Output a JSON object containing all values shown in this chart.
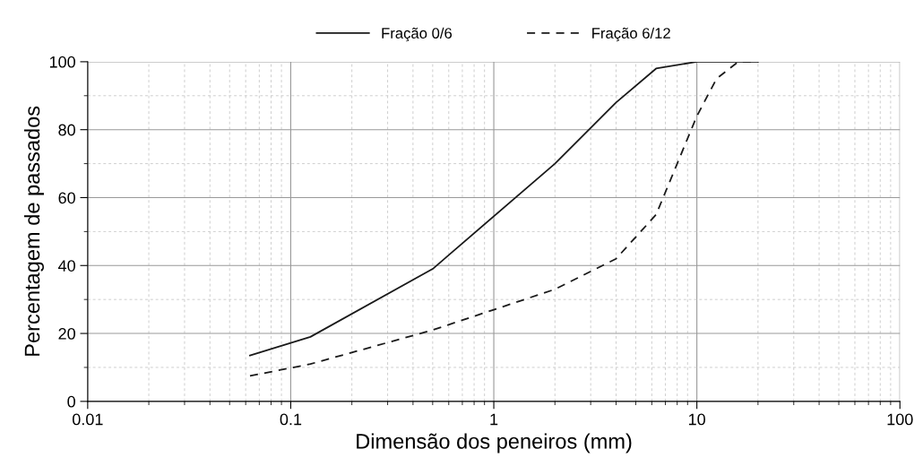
{
  "chart_data": {
    "type": "line",
    "xlabel": "Dimensão dos peneiros (mm)",
    "ylabel": "Percentagem de passados",
    "log": "x",
    "xlim": [
      0.01,
      100
    ],
    "xticks": [
      0.01,
      0.1,
      1,
      10,
      100
    ],
    "ylim": [
      0,
      100
    ],
    "yticks": [
      0,
      20,
      40,
      60,
      80,
      100
    ],
    "grid": true,
    "legend": "top",
    "marker": "none",
    "series": [
      {
        "name": "Fração 0/6",
        "color": "#1a1a1a",
        "line_style": "solid",
        "x": [
          0.063,
          0.125,
          0.5,
          2,
          4,
          6.3,
          10,
          20
        ],
        "values": [
          13.5,
          19,
          39,
          70,
          88,
          98,
          100,
          100
        ]
      },
      {
        "name": "Fração 6/12",
        "color": "#1a1a1a",
        "line_style": "dashed",
        "x": [
          0.063,
          0.125,
          0.25,
          0.5,
          1,
          2,
          4,
          6.3,
          8,
          10,
          12.5,
          16,
          20
        ],
        "values": [
          7.5,
          11,
          16,
          21,
          27,
          33,
          42,
          55,
          70,
          84,
          95,
          100,
          100
        ]
      }
    ]
  }
}
